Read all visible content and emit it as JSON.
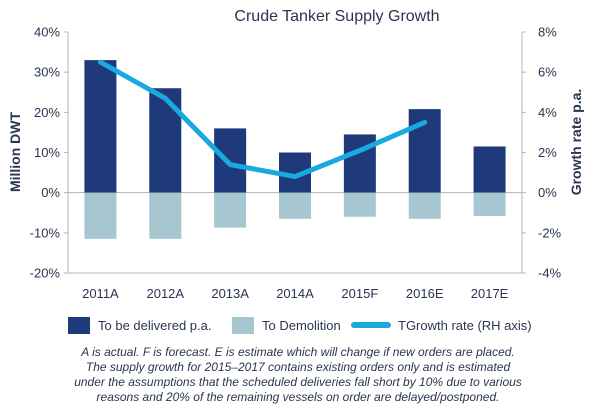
{
  "chart_data": {
    "type": "bar",
    "title": "Crude Tanker Supply Growth",
    "categories": [
      "2011A",
      "2012A",
      "2013A",
      "2014A",
      "2015F",
      "2016E",
      "2017E"
    ],
    "series": [
      {
        "name": "To be delivered p.a.",
        "axis": "left",
        "kind": "bar",
        "color": "#1f3a7a",
        "values": [
          33,
          26,
          16,
          10,
          14.5,
          20.8,
          11.5
        ]
      },
      {
        "name": "To Demolition",
        "axis": "left",
        "kind": "bar",
        "color": "#a7c7d0",
        "values": [
          -11.5,
          -11.5,
          -8.7,
          -6.5,
          -6,
          -6.5,
          -5.8
        ]
      },
      {
        "name": "TGrowth rate (RH axis)",
        "axis": "right",
        "kind": "line",
        "color": "#19a9e1",
        "values": [
          6.5,
          4.7,
          1.4,
          0.8,
          2.1,
          3.5,
          null
        ]
      }
    ],
    "ylabel_left": "Million DWT",
    "ylabel_right": "Growth rate p.a.",
    "ylim_left": [
      -20,
      40
    ],
    "ylim_right": [
      -4,
      8
    ],
    "yticks_left": [
      "40%",
      "30%",
      "20%",
      "10%",
      "0%",
      "-10%",
      "-20%"
    ],
    "yticks_right": [
      "8%",
      "6%",
      "4%",
      "2%",
      "0%",
      "-2%",
      "-4%"
    ],
    "legend_position": "bottom",
    "grid": false
  },
  "colors": {
    "delivered": "#1f3a7a",
    "demolition": "#a7c7d0",
    "growth_line": "#19a9e1",
    "axis": "#b0b6bf"
  },
  "footnote": [
    "A is actual. F is forecast. E is estimate which will change if new orders are placed.",
    "The supply growth for 2015–2017 contains existing orders only and is estimated",
    "under the assumptions that the scheduled deliveries fall short by 10% due to various",
    "reasons and 20% of the remaining vessels on order are delayed/postponed."
  ]
}
